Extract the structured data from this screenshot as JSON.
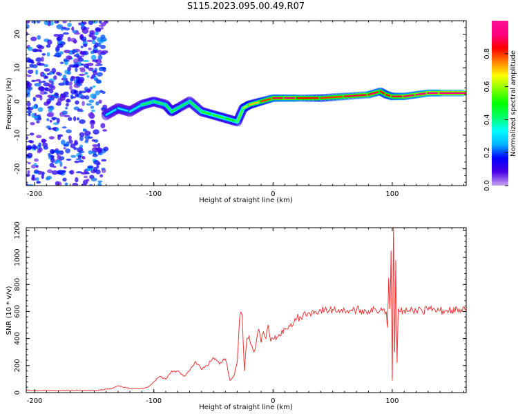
{
  "figure": {
    "title": "S115.2023.095.00.49.R07"
  },
  "chart_data": [
    {
      "type": "heatmap",
      "xlabel": "Height of straight line (km)",
      "ylabel": "Frequency (Hz)",
      "xlim": [
        -207,
        162
      ],
      "ylim": [
        -25,
        24
      ],
      "x_ticks": [
        -200,
        -100,
        0,
        100
      ],
      "y_ticks": [
        -20,
        -10,
        0,
        10,
        20
      ],
      "grid": false,
      "colorbar": {
        "label": "Normalized spectral amplitude",
        "ticks": [
          "0.0",
          "0.2",
          "0.4",
          "0.6",
          "0.8"
        ],
        "range": [
          0,
          1
        ],
        "colormap": [
          "#c8a4f0",
          "#4b00e6",
          "#0000ff",
          "#00b4ff",
          "#00ffff",
          "#00ff66",
          "#00ff00",
          "#80ff00",
          "#ffff00",
          "#ff8000",
          "#ff0000",
          "#ff0080",
          "#ff1493"
        ]
      },
      "ridge": {
        "name": "dominant frequency track",
        "x": [
          -140,
          -130,
          -120,
          -110,
          -100,
          -90,
          -85,
          -80,
          -70,
          -60,
          -50,
          -40,
          -30,
          -25,
          -20,
          -10,
          0,
          10,
          20,
          40,
          60,
          80,
          90,
          95,
          100,
          110,
          120,
          130,
          140,
          162
        ],
        "y": [
          -4,
          -2,
          -3,
          -1,
          0,
          -1,
          -3,
          -2,
          0,
          -3,
          -4,
          -5,
          -6,
          -2,
          -1,
          0,
          1,
          1,
          1,
          1,
          1.5,
          2,
          3,
          2,
          1.5,
          1.5,
          2,
          2.5,
          2.5,
          2.5
        ],
        "amplitude": [
          0.3,
          0.35,
          0.3,
          0.4,
          0.45,
          0.4,
          0.5,
          0.45,
          0.4,
          0.5,
          0.55,
          0.5,
          0.5,
          0.6,
          0.65,
          0.75,
          0.85,
          0.9,
          0.9,
          0.75,
          0.85,
          0.9,
          0.85,
          0.8,
          0.85,
          0.9,
          0.9,
          0.95,
          0.95,
          0.95
        ]
      },
      "noise_region": {
        "x_range": [
          -207,
          -140
        ],
        "y_range": [
          -25,
          24
        ],
        "amplitude_range": [
          0.05,
          0.25
        ]
      }
    },
    {
      "type": "line",
      "xlabel": "Height of straight line (km)",
      "ylabel": "SNR (10 * v/v)",
      "xlim": [
        -207,
        162
      ],
      "ylim": [
        0,
        1220
      ],
      "x_ticks": [
        -200,
        -100,
        0,
        100
      ],
      "y_ticks": [
        0,
        200,
        400,
        600,
        800,
        1000,
        1200
      ],
      "grid": false,
      "series": [
        {
          "color": "#ee3333",
          "x": [
            -207,
            -180,
            -150,
            -135,
            -130,
            -120,
            -110,
            -105,
            -100,
            -95,
            -90,
            -85,
            -80,
            -75,
            -70,
            -65,
            -60,
            -55,
            -50,
            -45,
            -40,
            -36,
            -33,
            -30,
            -28,
            -26,
            -24,
            -22,
            -20,
            -18,
            -16,
            -14,
            -12,
            -10,
            -8,
            -6,
            -4,
            -2,
            0,
            5,
            10,
            15,
            20,
            25,
            30,
            35,
            40,
            45,
            50,
            60,
            70,
            80,
            90,
            93,
            95,
            96,
            97,
            98,
            99,
            100,
            101,
            102,
            103,
            104,
            105,
            107,
            110,
            115,
            120,
            122,
            125,
            130,
            140,
            150,
            162
          ],
          "y": [
            15,
            15,
            15,
            30,
            50,
            30,
            30,
            40,
            80,
            120,
            100,
            160,
            160,
            120,
            160,
            230,
            170,
            200,
            260,
            210,
            250,
            90,
            120,
            230,
            560,
            580,
            160,
            400,
            420,
            350,
            300,
            380,
            470,
            370,
            450,
            400,
            500,
            380,
            400,
            430,
            470,
            510,
            550,
            570,
            590,
            600,
            610,
            605,
            615,
            610,
            610,
            605,
            610,
            620,
            600,
            480,
            850,
            620,
            1050,
            90,
            1220,
            300,
            980,
            220,
            620,
            600,
            610,
            600,
            605,
            630,
            605,
            610,
            605,
            610,
            608
          ]
        }
      ]
    }
  ]
}
